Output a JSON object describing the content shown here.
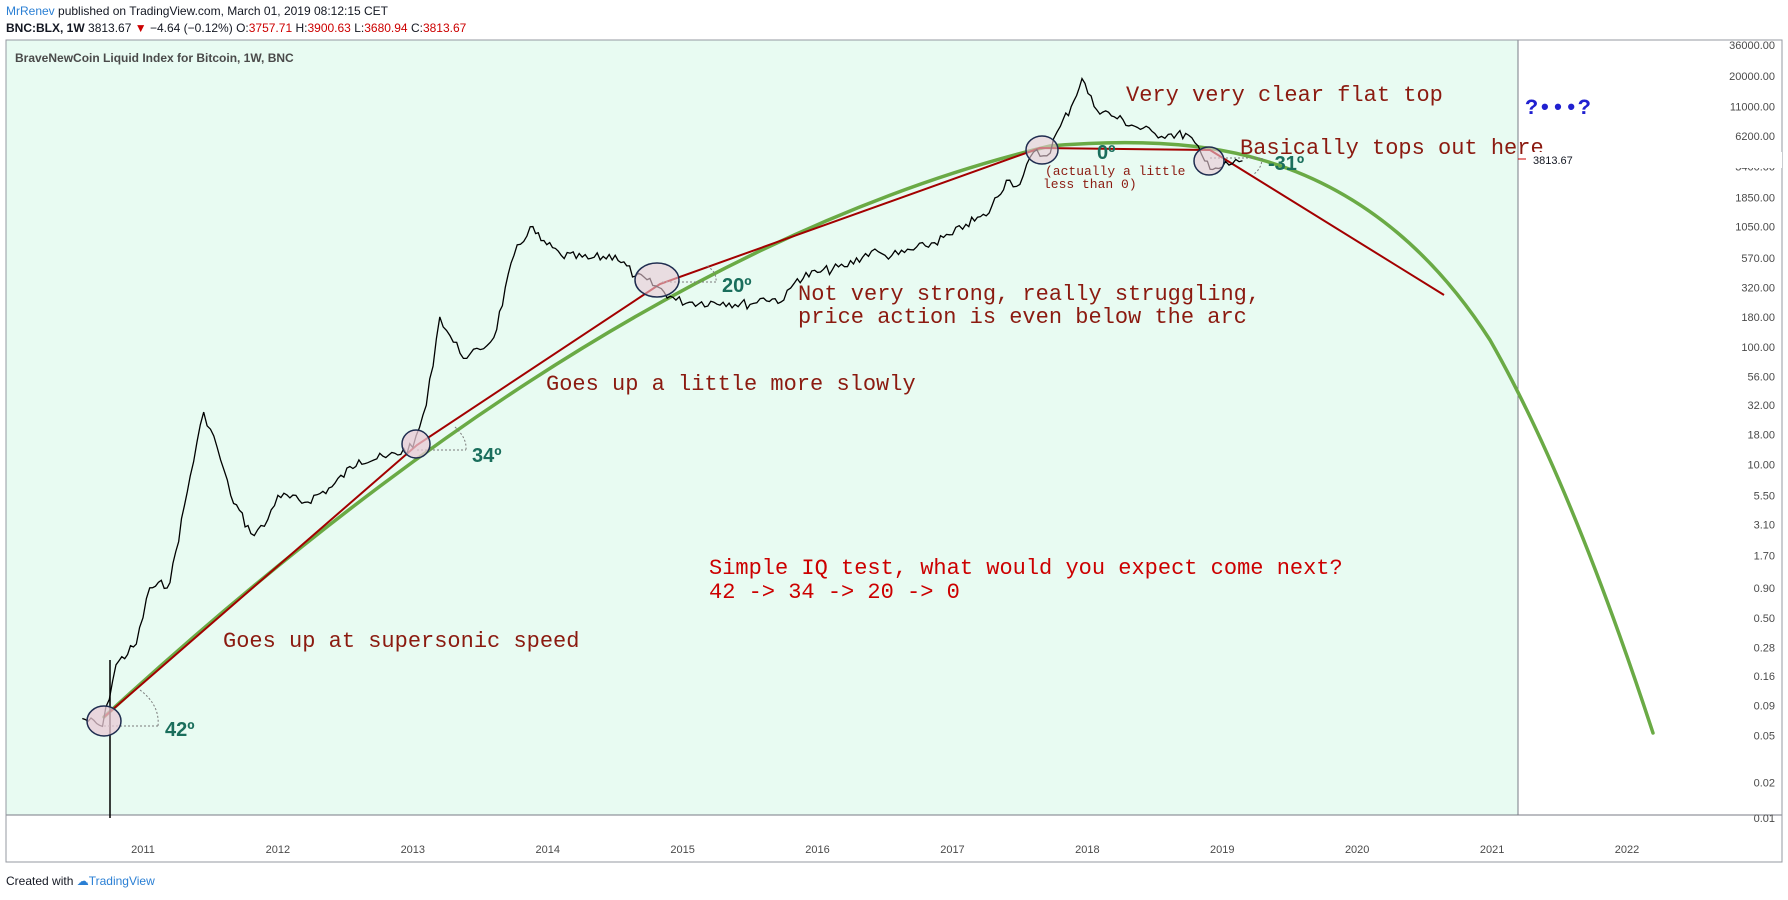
{
  "header": {
    "author": "MrRenev",
    "published": "published on TradingView.com, March 01, 2019 08:12:15 CET",
    "symbol": "BNC:BLX, 1W",
    "last": "3813.67",
    "change": "−4.64 (−0.12%)",
    "o_label": "O:",
    "o_value": "3757.71",
    "h_label": "H:",
    "h_value": "3900.63",
    "l_label": "L:",
    "l_value": "3680.94",
    "c_label": "C:",
    "c_value": "3813.67"
  },
  "footer": {
    "created_with": "Created with",
    "brand": "TradingView"
  },
  "colors": {
    "background": "#e8fbf2",
    "price": "#000000",
    "arc": "#6aaa45",
    "trend": "#a30000",
    "annotation": "#8b1a10",
    "angle": "#1a6e5c",
    "price_tag": "#cc0000",
    "circle_fill": "#e9c9d6",
    "circle_stroke": "#1f2d50",
    "glyph": "#2020d0"
  },
  "chart_data": {
    "type": "line",
    "title": "BraveNewCoin Liquid Index for Bitcoin, 1W, BNC",
    "y_scale": "log",
    "x_ticks": [
      "2011",
      "2012",
      "2013",
      "2014",
      "2015",
      "2016",
      "2017",
      "2018",
      "2019",
      "2020",
      "2021",
      "2022"
    ],
    "y_ticks": [
      "36000.00",
      "20000.00",
      "11000.00",
      "6200.00",
      "3400.00",
      "1850.00",
      "1050.00",
      "570.00",
      "320.00",
      "180.00",
      "100.00",
      "56.00",
      "32.00",
      "18.00",
      "10.00",
      "5.50",
      "3.10",
      "1.70",
      "0.90",
      "0.50",
      "0.28",
      "0.16",
      "0.09",
      "0.05",
      "0.02",
      "0.01"
    ],
    "last_price_label": "3813.67",
    "series": [
      {
        "type": "candles-approx",
        "x": [
          2010.55,
          2010.7,
          2010.8,
          2010.95,
          2011.05,
          2011.2,
          2011.35,
          2011.45,
          2011.55,
          2011.65,
          2011.8,
          2011.9,
          2012.0,
          2012.2,
          2012.4,
          2012.6,
          2012.8,
          2013.0,
          2013.1,
          2013.2,
          2013.3,
          2013.4,
          2013.5,
          2013.6,
          2013.75,
          2013.87,
          2013.95,
          2014.1,
          2014.3,
          2014.5,
          2014.65,
          2014.8,
          2014.95,
          2015.05,
          2015.3,
          2015.5,
          2015.6,
          2015.75,
          2015.85,
          2016.0,
          2016.2,
          2016.4,
          2016.5,
          2016.6,
          2016.8,
          2017.0,
          2017.1,
          2017.25,
          2017.4,
          2017.5,
          2017.6,
          2017.7,
          2017.8,
          2017.88,
          2017.96,
          2018.05,
          2018.2,
          2018.35,
          2018.5,
          2018.6,
          2018.75,
          2018.87,
          2018.95,
          2019.05,
          2019.15
        ],
        "y": [
          0.07,
          0.06,
          0.2,
          0.3,
          0.9,
          1.0,
          8.0,
          28.0,
          14.0,
          5.5,
          2.6,
          3.0,
          5.5,
          4.8,
          6.5,
          11.0,
          11.5,
          14.0,
          32.0,
          180.0,
          110.0,
          80.0,
          95.0,
          120.0,
          600.0,
          1050.0,
          800.0,
          600.0,
          560.0,
          600.0,
          400.0,
          330.0,
          250.0,
          240.0,
          240.0,
          230.0,
          260.0,
          250.0,
          380.0,
          430.0,
          480.0,
          650.0,
          600.0,
          610.0,
          720.0,
          900.0,
          1100.0,
          1300.0,
          2600.0,
          2400.0,
          4500.0,
          4200.0,
          7500.0,
          11000.0,
          19000.0,
          11000.0,
          9000.0,
          7500.0,
          6500.0,
          6400.0,
          6300.0,
          3800.0,
          3300.0,
          3500.0,
          3813.67
        ]
      }
    ],
    "annotations": [
      "Very very clear flat top",
      "Basically tops out here",
      "(actually a little",
      "less than 0)",
      "Not very strong, really struggling,",
      "price action is even below the arc",
      "Goes up a little more slowly",
      "Simple IQ test, what would you expect come next?",
      "42 -> 34 -> 20 -> 0",
      "Goes up at supersonic speed"
    ],
    "angles": [
      "42º",
      "34º",
      "20º",
      "0º",
      "-31º"
    ],
    "glyph_note": "?•••?"
  }
}
